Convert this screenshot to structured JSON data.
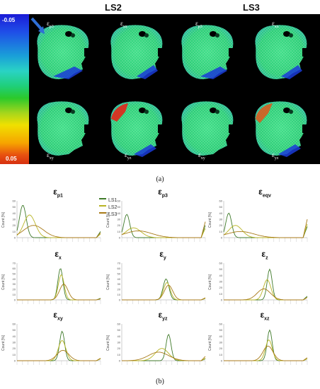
{
  "headers": {
    "ls2": "LS2",
    "ls3": "LS3"
  },
  "colorbar": {
    "max_label": "-0.05",
    "min_label": "0.05"
  },
  "tiles": [
    {
      "main": "ε",
      "sub": "p3"
    },
    {
      "main": "ε",
      "sub": "xx"
    },
    {
      "main": "ε",
      "sub": "p3"
    },
    {
      "main": "ε",
      "sub": "xx"
    },
    {
      "main": "ε",
      "sub": "xy"
    },
    {
      "main": "ε",
      "sub": "yz"
    },
    {
      "main": "ε",
      "sub": "xy"
    },
    {
      "main": "ε",
      "sub": "yz"
    }
  ],
  "caption_a": "(a)",
  "caption_b": "(b)",
  "legend": [
    {
      "name": "LS1",
      "color": "#3f7a2a"
    },
    {
      "name": "LS2",
      "color": "#b8b424"
    },
    {
      "name": "LS3",
      "color": "#a87a18"
    }
  ],
  "chart_data": [
    {
      "type": "line",
      "title": "ε",
      "title_sub": "p1",
      "ylabel": "Count [%]",
      "yticks": [
        "0",
        "10",
        "20",
        "30",
        "40",
        "50",
        "60"
      ],
      "ylim": [
        0,
        60
      ],
      "series": [
        {
          "name": "LS1",
          "peak": 0.07,
          "height": 53,
          "width": 0.04
        },
        {
          "name": "LS2",
          "peak": 0.15,
          "height": 37,
          "width": 0.07
        },
        {
          "name": "LS3",
          "peak": 0.2,
          "height": 20,
          "width": 0.12
        }
      ],
      "edge_right": [
        10,
        6,
        8
      ]
    },
    {
      "type": "line",
      "title": "ε",
      "title_sub": "p3",
      "ylabel": "Count [%]",
      "yticks": [
        "0",
        "10",
        "20",
        "30",
        "40",
        "50",
        "60"
      ],
      "ylim": [
        0,
        60
      ],
      "series": [
        {
          "name": "LS1",
          "peak": 0.06,
          "height": 38,
          "width": 0.035
        },
        {
          "name": "LS2",
          "peak": 0.14,
          "height": 16,
          "width": 0.09
        },
        {
          "name": "LS3",
          "peak": 0.2,
          "height": 11,
          "width": 0.16
        }
      ],
      "edge_right": [
        20,
        15,
        26
      ]
    },
    {
      "type": "line",
      "title": "ε",
      "title_sub": "eqv",
      "ylabel": "Count [%]",
      "yticks": [
        "0",
        "10",
        "20",
        "30",
        "40",
        "50",
        "60"
      ],
      "ylim": [
        0,
        60
      ],
      "series": [
        {
          "name": "LS1",
          "peak": 0.06,
          "height": 40,
          "width": 0.035
        },
        {
          "name": "LS2",
          "peak": 0.14,
          "height": 20,
          "width": 0.08
        },
        {
          "name": "LS3",
          "peak": 0.2,
          "height": 10,
          "width": 0.16
        }
      ],
      "edge_right": [
        18,
        22,
        30
      ]
    },
    {
      "type": "line",
      "title": "ε",
      "title_sub": "x",
      "ylabel": "Count [%]",
      "yticks": [
        "0",
        "10",
        "20",
        "30",
        "40",
        "50",
        "60",
        "70"
      ],
      "ylim": [
        0,
        70
      ],
      "series": [
        {
          "name": "LS1",
          "peak": 0.52,
          "height": 60,
          "width": 0.03
        },
        {
          "name": "LS2",
          "peak": 0.53,
          "height": 48,
          "width": 0.035
        },
        {
          "name": "LS3",
          "peak": 0.56,
          "height": 30,
          "width": 0.05
        }
      ],
      "edge_right": [
        3,
        2,
        2
      ]
    },
    {
      "type": "line",
      "title": "ε",
      "title_sub": "y",
      "ylabel": "Count [%]",
      "yticks": [
        "0",
        "10",
        "20",
        "30",
        "40",
        "50",
        "60",
        "70"
      ],
      "ylim": [
        0,
        70
      ],
      "series": [
        {
          "name": "LS1",
          "peak": 0.53,
          "height": 40,
          "width": 0.035
        },
        {
          "name": "LS2",
          "peak": 0.54,
          "height": 33,
          "width": 0.04
        },
        {
          "name": "LS3",
          "peak": 0.56,
          "height": 28,
          "width": 0.05
        }
      ],
      "edge_right": [
        3,
        3,
        4
      ]
    },
    {
      "type": "line",
      "title": "ε",
      "title_sub": "z",
      "ylabel": "Count [%]",
      "yticks": [
        "0",
        "10",
        "20",
        "30",
        "40",
        "50",
        "60"
      ],
      "ylim": [
        0,
        60
      ],
      "series": [
        {
          "name": "LS1",
          "peak": 0.55,
          "height": 50,
          "width": 0.03
        },
        {
          "name": "LS2",
          "peak": 0.52,
          "height": 33,
          "width": 0.045
        },
        {
          "name": "LS3",
          "peak": 0.48,
          "height": 18,
          "width": 0.08
        }
      ],
      "edge_right": [
        6,
        4,
        4
      ]
    },
    {
      "type": "line",
      "title": "ε",
      "title_sub": "xy",
      "ylabel": "Count [%]",
      "yticks": [
        "0",
        "10",
        "20",
        "30",
        "40",
        "50",
        "60"
      ],
      "ylim": [
        0,
        60
      ],
      "series": [
        {
          "name": "LS1",
          "peak": 0.54,
          "height": 48,
          "width": 0.03
        },
        {
          "name": "LS2",
          "peak": 0.54,
          "height": 33,
          "width": 0.045
        },
        {
          "name": "LS3",
          "peak": 0.55,
          "height": 17,
          "width": 0.07
        }
      ],
      "edge_right": [
        3,
        3,
        4
      ]
    },
    {
      "type": "line",
      "title": "ε",
      "title_sub": "yz",
      "ylabel": "Count [%]",
      "yticks": [
        "0",
        "10",
        "20",
        "30",
        "40",
        "50",
        "60"
      ],
      "ylim": [
        0,
        60
      ],
      "series": [
        {
          "name": "LS1",
          "peak": 0.56,
          "height": 43,
          "width": 0.03
        },
        {
          "name": "LS2",
          "peak": 0.48,
          "height": 20,
          "width": 0.08
        },
        {
          "name": "LS3",
          "peak": 0.44,
          "height": 14,
          "width": 0.12
        }
      ],
      "edge_right": [
        3,
        4,
        7
      ]
    },
    {
      "type": "line",
      "title": "ε",
      "title_sub": "xz",
      "ylabel": "Count [%]",
      "yticks": [
        "0",
        "10",
        "20",
        "30",
        "40",
        "50",
        "60"
      ],
      "ylim": [
        0,
        60
      ],
      "series": [
        {
          "name": "LS1",
          "peak": 0.55,
          "height": 50,
          "width": 0.03
        },
        {
          "name": "LS2",
          "peak": 0.54,
          "height": 34,
          "width": 0.04
        },
        {
          "name": "LS3",
          "peak": 0.53,
          "height": 24,
          "width": 0.06
        }
      ],
      "edge_right": [
        3,
        3,
        5
      ]
    }
  ]
}
